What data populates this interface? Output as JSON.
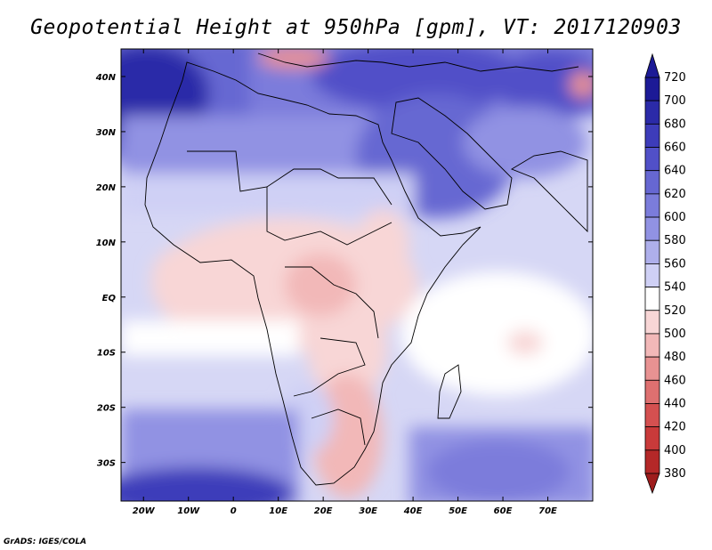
{
  "title": "Geopotential Height at 950hPa [gpm], VT: 2017120903",
  "footer": "GrADS: IGES/COLA",
  "map": {
    "projection": "latlon",
    "lon_range": [
      -25,
      80
    ],
    "lat_range": [
      -37,
      45
    ],
    "x_ticks": [
      {
        "lon": -20,
        "label": "20W"
      },
      {
        "lon": -10,
        "label": "10W"
      },
      {
        "lon": 0,
        "label": "0"
      },
      {
        "lon": 10,
        "label": "10E"
      },
      {
        "lon": 20,
        "label": "20E"
      },
      {
        "lon": 30,
        "label": "30E"
      },
      {
        "lon": 40,
        "label": "40E"
      },
      {
        "lon": 50,
        "label": "50E"
      },
      {
        "lon": 60,
        "label": "60E"
      },
      {
        "lon": 70,
        "label": "70E"
      }
    ],
    "y_ticks": [
      {
        "lat": 40,
        "label": "40N"
      },
      {
        "lat": 30,
        "label": "30N"
      },
      {
        "lat": 20,
        "label": "20N"
      },
      {
        "lat": 10,
        "label": "10N"
      },
      {
        "lat": 0,
        "label": "EQ"
      },
      {
        "lat": -10,
        "label": "10S"
      },
      {
        "lat": -20,
        "label": "20S"
      },
      {
        "lat": -30,
        "label": "30S"
      }
    ]
  },
  "colorbar": {
    "levels": [
      "720",
      "700",
      "680",
      "660",
      "640",
      "620",
      "600",
      "580",
      "560",
      "540",
      "520",
      "500",
      "480",
      "460",
      "440",
      "420",
      "400",
      "380"
    ],
    "colors": [
      "#1c1a96",
      "#2b2aa8",
      "#3d3cba",
      "#5150c8",
      "#6667d2",
      "#7b7cdb",
      "#9192e3",
      "#aeafeb",
      "#cfd0f5",
      "#ffffff",
      "#f8d6d6",
      "#f2b8b8",
      "#e89292",
      "#de7070",
      "#d45050",
      "#c93a3a",
      "#b42828"
    ]
  }
}
